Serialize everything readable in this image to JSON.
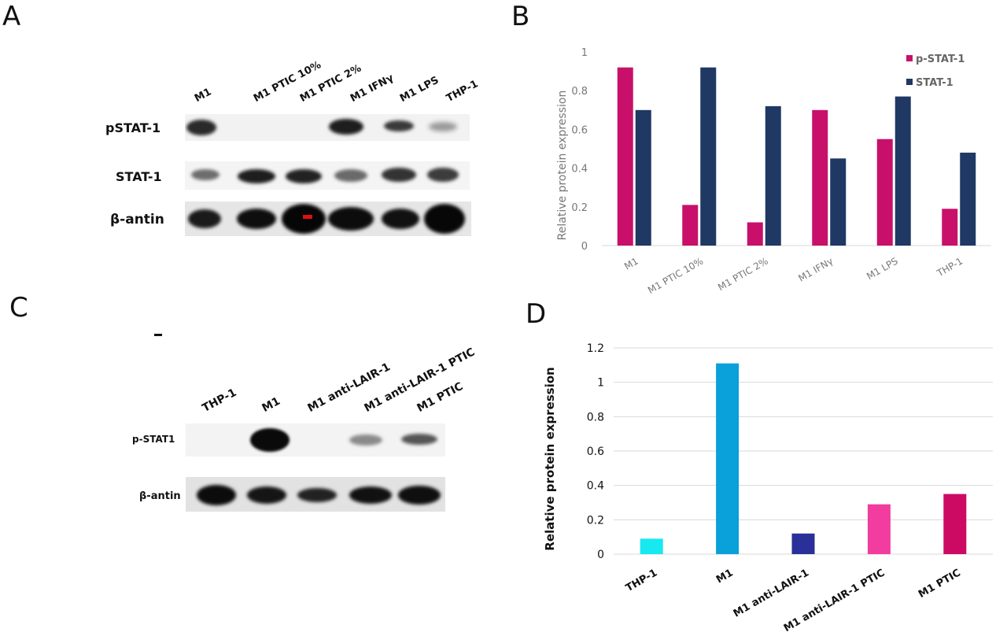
{
  "panels": {
    "a": "A",
    "b": "B",
    "c": "C",
    "d": "D"
  },
  "blot_a": {
    "lanes": [
      "M1",
      "M1 PTIC 10%",
      "M1 PTIC 2%",
      "M1 IFNγ",
      "M1 LPS",
      "THP-1"
    ],
    "rows": [
      "pSTAT-1",
      "STAT-1",
      "β-antin"
    ]
  },
  "blot_c": {
    "lanes": [
      "THP-1",
      "M1",
      "M1 anti-LAIR-1",
      "M1 anti-LAIR-1 PTIC",
      "M1 PTIC"
    ],
    "rows": [
      "p-STAT1",
      "β-antin"
    ]
  },
  "colors": {
    "pstat": "#c8106a",
    "stat": "#1f3864",
    "thp1": "#18e8f0",
    "m1": "#0aa0da",
    "anti_lair": "#2b2f9a",
    "anti_lair_ptic": "#f23ca0",
    "m1_ptic": "#cc0a64"
  },
  "chart_data": [
    {
      "type": "bar",
      "categories": [
        "M1",
        "M1 PTIC 10%",
        "M1 PTIC 2%",
        "M1 IFNγ",
        "M1 LPS",
        "THP-1"
      ],
      "series": [
        {
          "name": "p-STAT-1",
          "values": [
            0.92,
            0.21,
            0.12,
            0.7,
            0.55,
            0.19
          ]
        },
        {
          "name": "STAT-1",
          "values": [
            0.7,
            0.92,
            0.72,
            0.45,
            0.77,
            0.48
          ]
        }
      ],
      "yticks": [
        "0",
        "0.2",
        "0.4",
        "0.6",
        "0.8",
        "1"
      ],
      "ylabel": "Relative protein expression",
      "ylim": [
        0,
        1
      ],
      "grid": false,
      "legend": "top-right"
    },
    {
      "type": "bar",
      "categories": [
        "THP-1",
        "M1",
        "M1 anti-LAIR-1",
        "M1 anti-LAIR-1 PTIC",
        "M1 PTIC"
      ],
      "values": [
        0.09,
        1.11,
        0.12,
        0.29,
        0.35
      ],
      "yticks": [
        "0",
        "0.2",
        "0.4",
        "0.6",
        "0.8",
        "1",
        "1.2"
      ],
      "ylabel": "Relative protein expression",
      "ylim": [
        0,
        1.2
      ],
      "grid": true
    }
  ]
}
